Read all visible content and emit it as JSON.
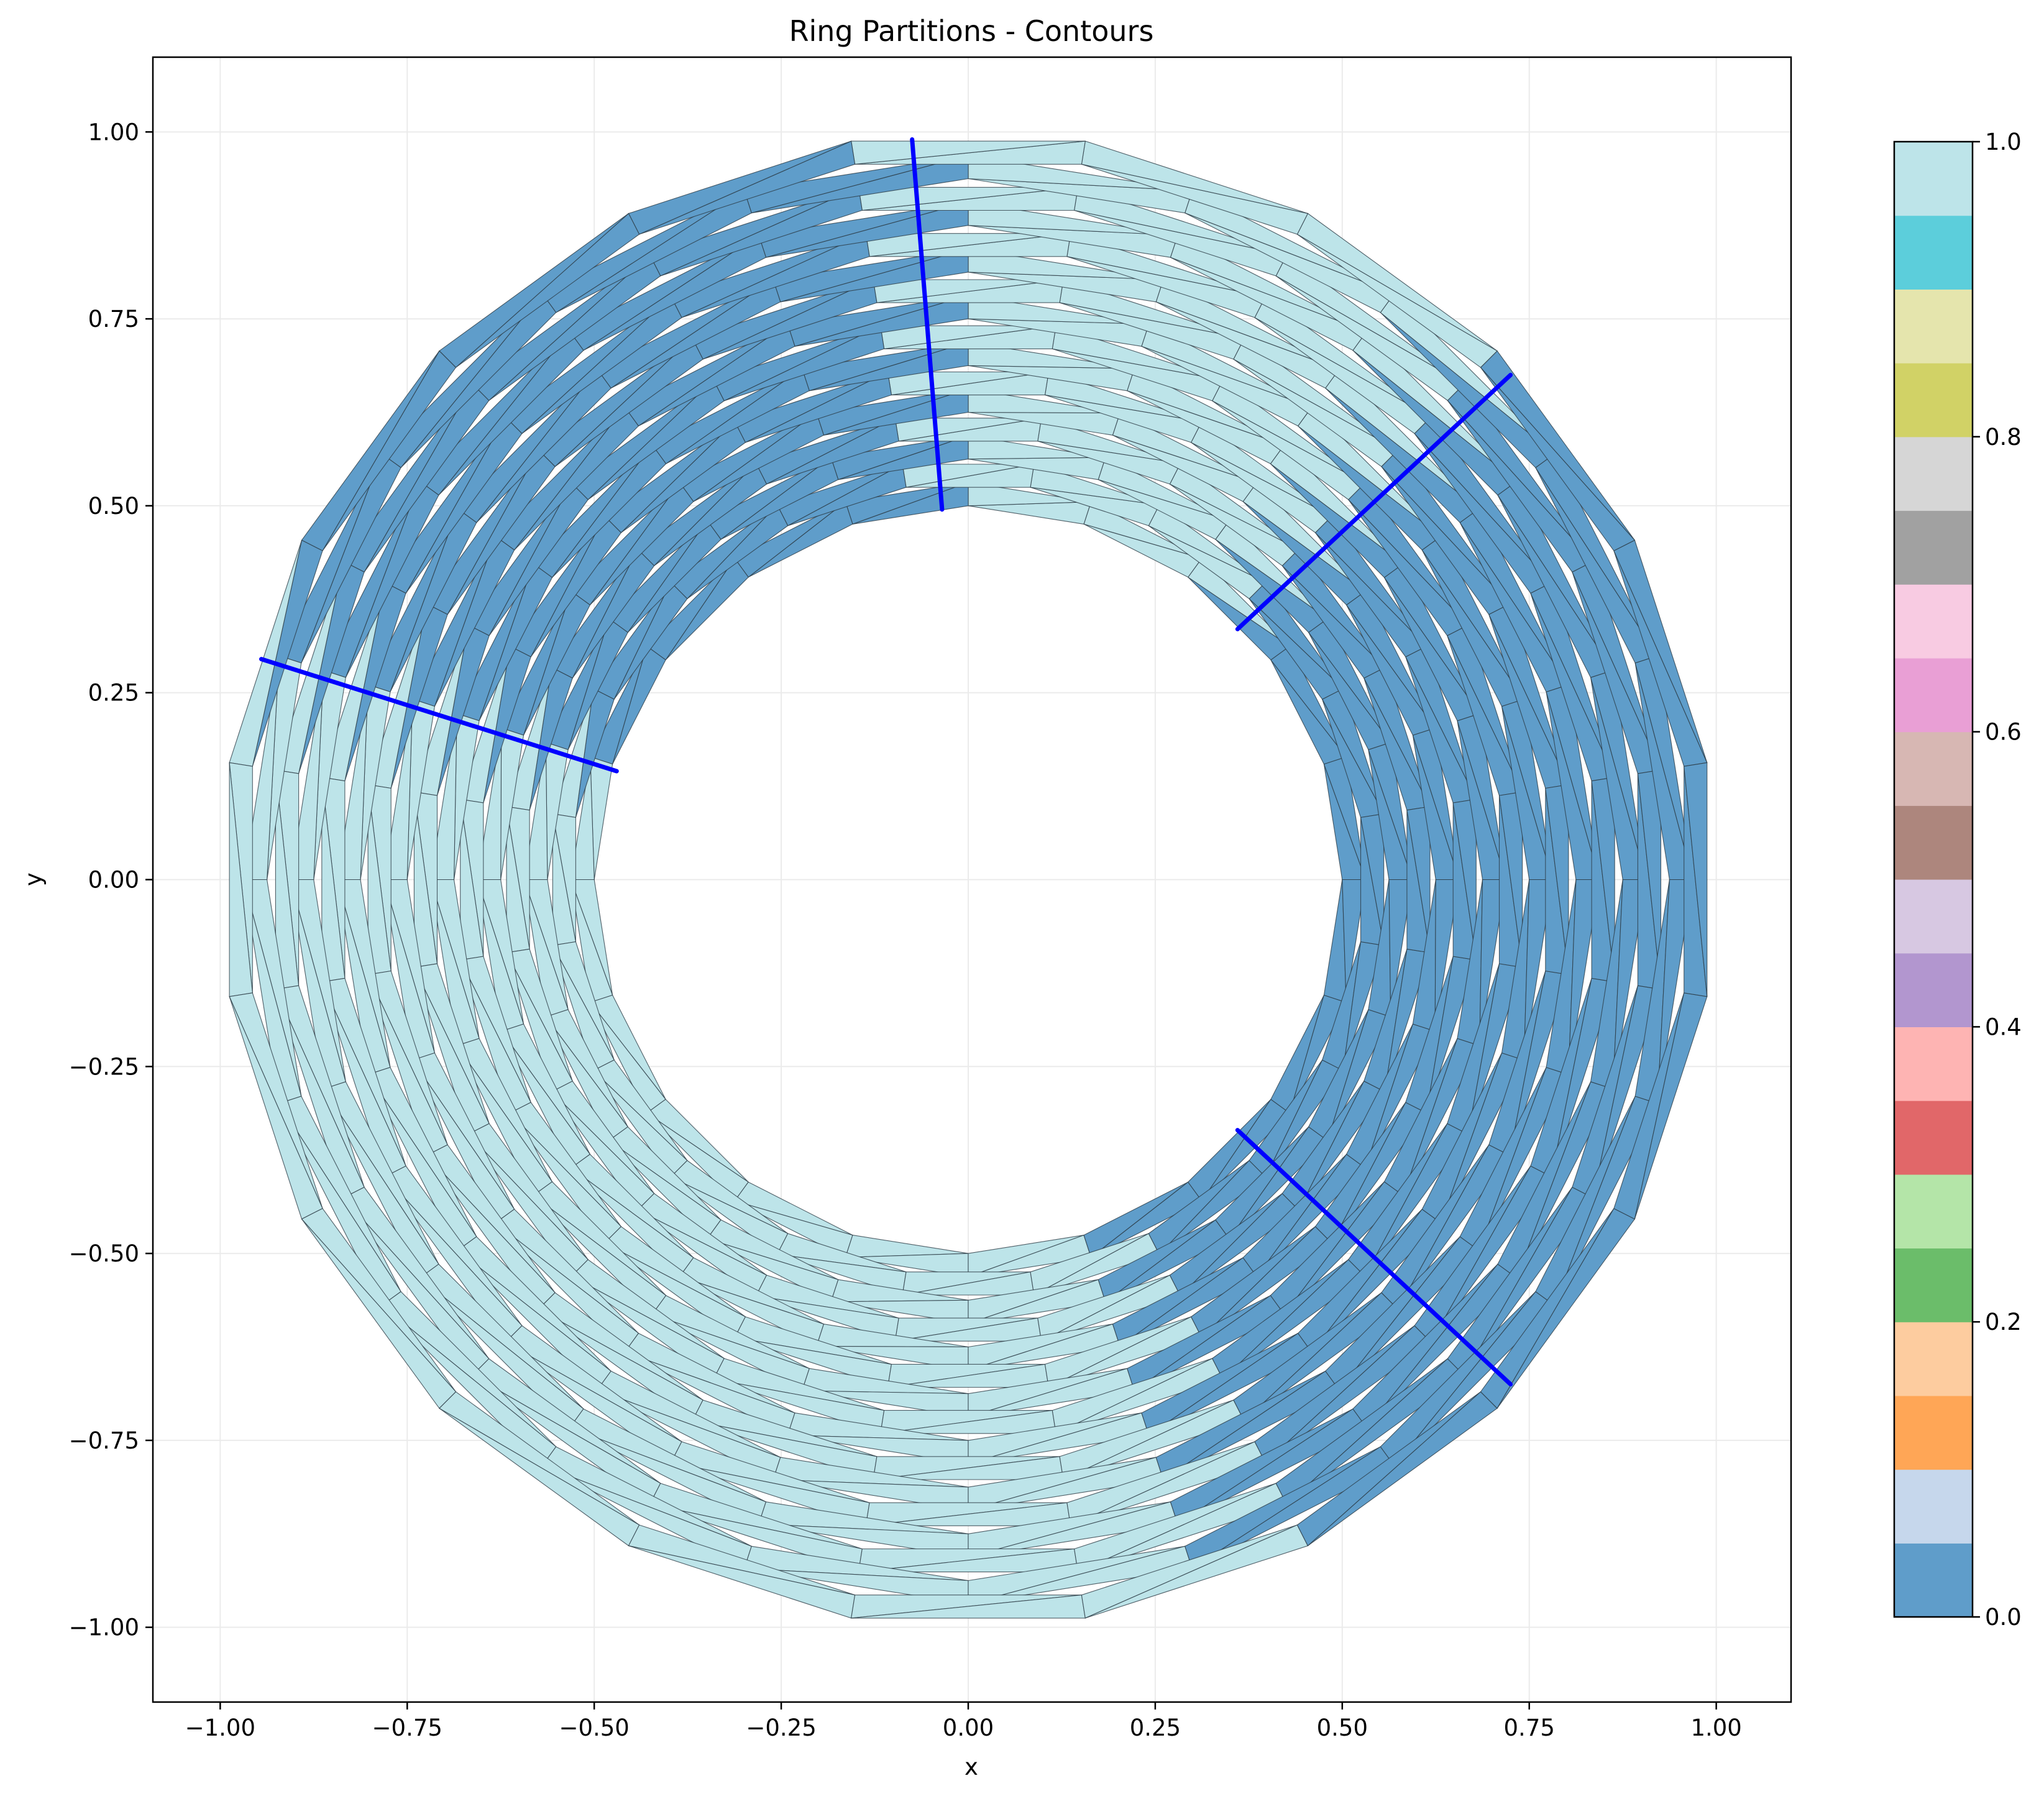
{
  "chart_data": {
    "type": "tripcolor",
    "title": "Ring Partitions - Contours",
    "xlabel": "x",
    "ylabel": "y",
    "xlim": [
      -1.09,
      1.1
    ],
    "ylim": [
      -1.1,
      1.1
    ],
    "x_ticks": [
      -1.0,
      -0.75,
      -0.5,
      -0.25,
      0.0,
      0.25,
      0.5,
      0.75,
      1.0
    ],
    "x_tick_labels": [
      "−1.00",
      "−0.75",
      "−0.50",
      "−0.25",
      "0.00",
      "0.25",
      "0.50",
      "0.75",
      "1.00"
    ],
    "y_ticks": [
      1.0,
      0.75,
      0.5,
      0.25,
      0.0,
      -0.25,
      -0.5,
      -0.75,
      -1.0
    ],
    "y_tick_labels": [
      "1.00",
      "0.75",
      "0.50",
      "0.25",
      "0.00",
      "−0.25",
      "−0.50",
      "−0.75",
      "−1.00"
    ],
    "grid": true,
    "mesh": {
      "inner_radius": 0.5,
      "outer_radius": 1.0,
      "angular_sectors": 20,
      "radial_layers": 16
    },
    "partitions": [
      {
        "theta_start_deg": -67.5,
        "theta_end_deg": 0,
        "value": 0.0,
        "color": "#5f9dca"
      },
      {
        "theta_start_deg": 0,
        "theta_end_deg": 45,
        "value": 0.0,
        "color": "#5f9dca"
      },
      {
        "theta_start_deg": 45,
        "theta_end_deg": 94.5,
        "value": 1.0,
        "color": "#bde4e9"
      },
      {
        "theta_start_deg": 94.5,
        "theta_end_deg": 162.5,
        "value": 0.0,
        "color": "#5f9dca"
      },
      {
        "theta_start_deg": 162.5,
        "theta_end_deg": 292.5,
        "value": 1.0,
        "color": "#bde4e9"
      }
    ],
    "contours": [
      {
        "x": [
          0.36,
          0.725
        ],
        "y": [
          0.335,
          0.675
        ]
      },
      {
        "x": [
          -0.035,
          -0.075
        ],
        "y": [
          0.495,
          0.99
        ]
      },
      {
        "x": [
          -0.47,
          -0.945
        ],
        "y": [
          0.145,
          0.295
        ]
      },
      {
        "x": [
          0.36,
          0.725
        ],
        "y": [
          -0.335,
          -0.675
        ]
      }
    ],
    "contour_color": "#0000ff",
    "colorbar": {
      "ticks": [
        0.0,
        0.2,
        0.4,
        0.6,
        0.8,
        1.0
      ],
      "tick_labels": [
        "0.0",
        "0.2",
        "0.4",
        "0.6",
        "0.8",
        "1.0"
      ],
      "colors": [
        "#5f9dca",
        "#c6d7ec",
        "#ffa656",
        "#fdcc9f",
        "#6bbd6a",
        "#b4e5a8",
        "#e16769",
        "#feb4b3",
        "#b296cf",
        "#d7c8e2",
        "#ad867d",
        "#d7b7b3",
        "#e99fd5",
        "#f8cbe2",
        "#a1a1a1",
        "#d6d6d6",
        "#d1d266",
        "#e5e5ad",
        "#5ccedb",
        "#bde4e9"
      ]
    }
  }
}
